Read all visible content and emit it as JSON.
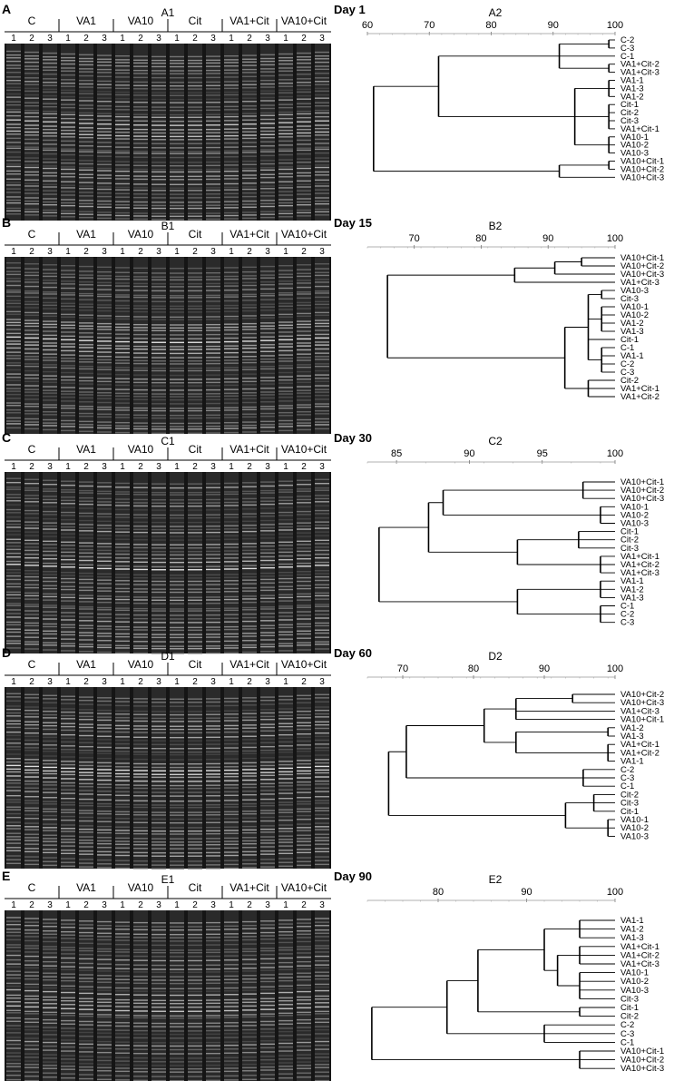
{
  "lane_numbers": [
    "1",
    "2",
    "3"
  ],
  "treatments": [
    "C",
    "VA1",
    "VA10",
    "Cit",
    "VA1+Cit",
    "VA10+Cit"
  ],
  "panels": [
    {
      "letter": "A",
      "gel_label": "A1",
      "day": "Day 1",
      "tree_label": "A2",
      "ticks": [
        "60",
        "70",
        "80",
        "90",
        "100"
      ],
      "leaves": [
        "C-2",
        "C-3",
        "C-1",
        "VA1+Cit-2",
        "VA1+Cit-3",
        "VA1-1",
        "VA1-3",
        "VA1-2",
        "Cit-1",
        "Cit-2",
        "Cit-3",
        "VA1+Cit-1",
        "VA10-1",
        "VA10-2",
        "VA10-3",
        "VA10+Cit-1",
        "VA10+Cit-2",
        "VA10+Cit-3"
      ]
    },
    {
      "letter": "B",
      "gel_label": "B1",
      "day": "Day 15",
      "tree_label": "B2",
      "ticks": [
        "70",
        "80",
        "90",
        "100"
      ],
      "leaves": [
        "VA10+Cit-1",
        "VA10+Cit-2",
        "VA10+Cit-3",
        "VA1+Cit-3",
        "VA10-3",
        "Cit-3",
        "VA10-1",
        "VA10-2",
        "VA1-2",
        "VA1-3",
        "Cit-1",
        "C-1",
        "VA1-1",
        "C-2",
        "C-3",
        "Cit-2",
        "VA1+Cit-1",
        "VA1+Cit-2"
      ]
    },
    {
      "letter": "C",
      "gel_label": "C1",
      "day": "Day 30",
      "tree_label": "C2",
      "ticks": [
        "85",
        "90",
        "95",
        "100"
      ],
      "leaves": [
        "VA10+Cit-1",
        "VA10+Cit-2",
        "VA10+Cit-3",
        "VA10-1",
        "VA10-2",
        "VA10-3",
        "Cit-1",
        "Cit-2",
        "Cit-3",
        "VA1+Cit-1",
        "VA1+Cit-2",
        "VA1+Cit-3",
        "VA1-1",
        "VA1-2",
        "VA1-3",
        "C-1",
        "C-2",
        "C-3"
      ]
    },
    {
      "letter": "D",
      "gel_label": "D1",
      "day": "Day 60",
      "tree_label": "D2",
      "ticks": [
        "70",
        "80",
        "90",
        "100"
      ],
      "leaves": [
        "VA10+Cit-2",
        "VA10+Cit-3",
        "VA1+Cit-3",
        "VA10+Cit-1",
        "VA1-2",
        "VA1-3",
        "VA1+Cit-1",
        "VA1+Cit-2",
        "VA1-1",
        "C-2",
        "C-3",
        "C-1",
        "Cit-2",
        "Cit-3",
        "Cit-1",
        "VA10-1",
        "VA10-2",
        "VA10-3"
      ]
    },
    {
      "letter": "E",
      "gel_label": "E1",
      "day": "Day 90",
      "tree_label": "E2",
      "ticks": [
        "80",
        "90",
        "100"
      ],
      "leaves": [
        "VA1-1",
        "VA1-2",
        "VA1-3",
        "VA1+Cit-1",
        "VA1+Cit-2",
        "VA1+Cit-3",
        "VA10-1",
        "VA10-2",
        "VA10-3",
        "Cit-3",
        "Cit-1",
        "Cit-2",
        "C-2",
        "C-3",
        "C-1",
        "VA10+Cit-1",
        "VA10+Cit-2",
        "VA10+Cit-3"
      ]
    }
  ]
}
